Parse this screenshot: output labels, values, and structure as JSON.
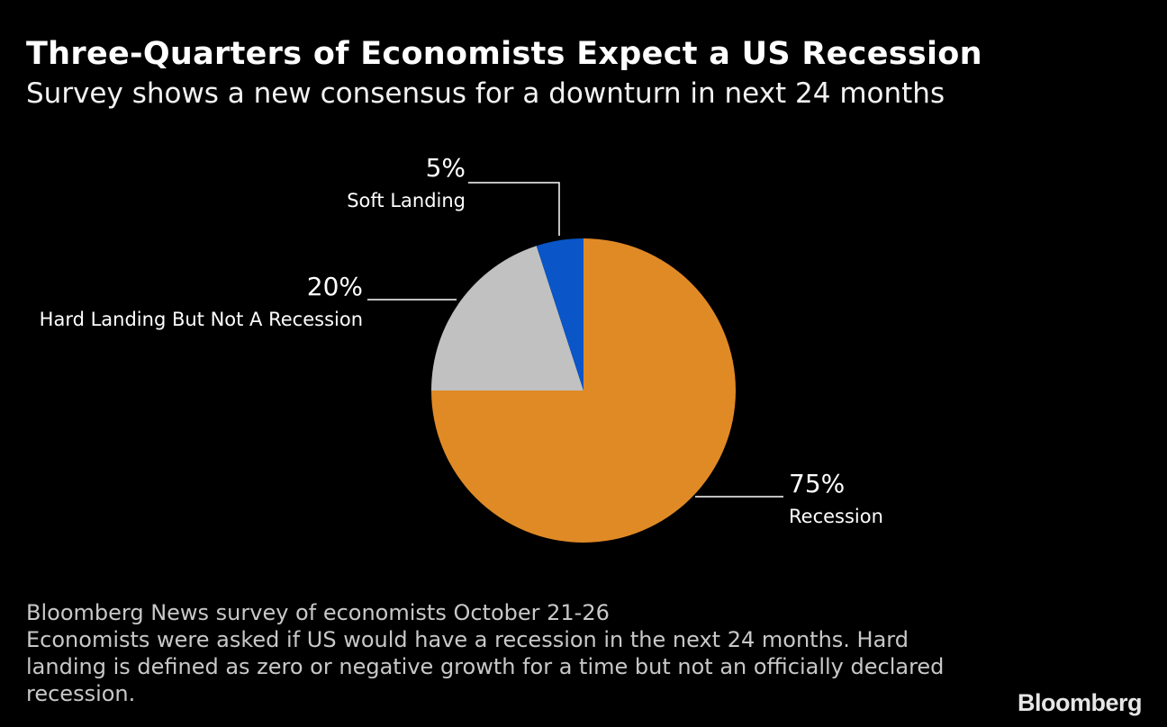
{
  "chart_data": {
    "type": "pie",
    "title": "Three-Quarters of Economists Expect a US Recession",
    "subtitle": "Survey shows a new consensus for a downturn in next 24 months",
    "slices": [
      {
        "label": "Recession",
        "value": 75,
        "value_label": "75%",
        "color": "#e08a26"
      },
      {
        "label": "Hard Landing But Not A Recession",
        "value": 20,
        "value_label": "20%",
        "color": "#c1c1c1"
      },
      {
        "label": "Soft Landing",
        "value": 5,
        "value_label": "5%",
        "color": "#0a55c8"
      }
    ],
    "start_angle": "12 o'clock, clockwise"
  },
  "footnote": {
    "source": "Bloomberg News survey of economists October 21-26",
    "note": "Economists were asked if US would have a recession in the next 24 months. Hard landing is defined as zero or negative growth for a time but not an officially declared recession."
  },
  "logo": "Bloomberg"
}
